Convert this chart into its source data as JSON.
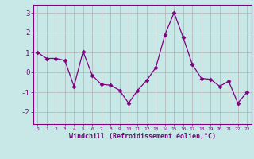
{
  "x": [
    0,
    1,
    2,
    3,
    4,
    5,
    6,
    7,
    8,
    9,
    10,
    11,
    12,
    13,
    14,
    15,
    16,
    17,
    18,
    19,
    20,
    21,
    22,
    23
  ],
  "y": [
    1.0,
    0.7,
    0.7,
    0.6,
    -0.7,
    1.05,
    -0.15,
    -0.6,
    -0.65,
    -0.9,
    -1.55,
    -0.9,
    -0.4,
    0.25,
    1.9,
    3.0,
    1.75,
    0.4,
    -0.3,
    -0.35,
    -0.7,
    -0.45,
    -1.55,
    -1.0
  ],
  "line_color": "#800080",
  "marker": "D",
  "marker_size": 2.5,
  "bg_color": "#c8e8e8",
  "grid_color": "#b0b0b0",
  "xlabel": "Windchill (Refroidissement éolien,°C)",
  "xlabel_color": "#800080",
  "tick_color": "#800080",
  "ylim": [
    -2.6,
    3.4
  ],
  "yticks": [
    -2,
    -1,
    0,
    1,
    2,
    3
  ],
  "xticks": [
    0,
    1,
    2,
    3,
    4,
    5,
    6,
    7,
    8,
    9,
    10,
    11,
    12,
    13,
    14,
    15,
    16,
    17,
    18,
    19,
    20,
    21,
    22,
    23
  ],
  "xlim": [
    -0.5,
    23.5
  ],
  "spine_color": "#800080"
}
